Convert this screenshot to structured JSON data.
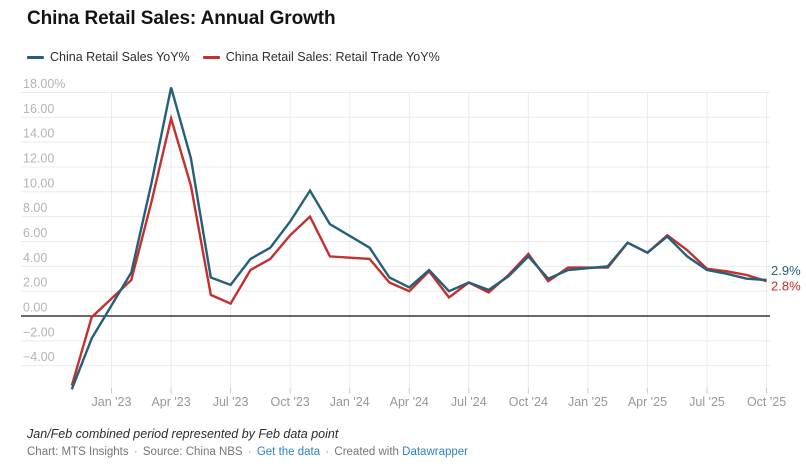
{
  "header": {
    "title": "China Retail Sales: Annual Growth"
  },
  "legend": {
    "items": [
      {
        "label": "China Retail Sales YoY%",
        "color": "#265f78"
      },
      {
        "label": "China Retail Sales: Retail Trade YoY%",
        "color": "#c4302d"
      }
    ]
  },
  "chart_data": {
    "type": "line",
    "title": "China Retail Sales: Annual Growth",
    "xlabel": "",
    "ylabel": "YoY % growth",
    "ylim": [
      -6.2,
      18.6
    ],
    "grid": true,
    "zero_line": true,
    "legend_position": "top-left",
    "x": [
      "Nov '22",
      "Dec '22",
      "Feb '23",
      "Mar '23",
      "Apr '23",
      "May '23",
      "Jun '23",
      "Jul '23",
      "Aug '23",
      "Sep '23",
      "Oct '23",
      "Nov '23",
      "Dec '23",
      "Feb '24",
      "Mar '24",
      "Apr '24",
      "May '24",
      "Jun '24",
      "Jul '24",
      "Aug '24",
      "Sep '24",
      "Oct '24",
      "Nov '24",
      "Dec '24",
      "Feb '25",
      "Mar '25",
      "Apr '25",
      "May '25",
      "Jun '25",
      "Jul '25",
      "Aug '25",
      "Sep '25",
      "Oct '25"
    ],
    "month_offsets": [
      -2,
      -1,
      1,
      2,
      3,
      4,
      5,
      6,
      7,
      8,
      9,
      10,
      11,
      13,
      14,
      15,
      16,
      17,
      18,
      19,
      20,
      21,
      22,
      23,
      25,
      26,
      27,
      28,
      29,
      30,
      31,
      32,
      33
    ],
    "series": [
      {
        "name": "China Retail Sales YoY%",
        "color": "#265f78",
        "end_label": "2.9%",
        "values": [
          -5.9,
          -1.8,
          3.5,
          10.6,
          18.4,
          12.7,
          3.1,
          2.5,
          4.6,
          5.5,
          7.6,
          10.1,
          7.4,
          5.5,
          3.1,
          2.3,
          3.7,
          2.0,
          2.7,
          2.1,
          3.2,
          4.8,
          3.0,
          3.7,
          4.0,
          5.9,
          5.1,
          6.4,
          4.8,
          3.7,
          3.4,
          3.0,
          2.9
        ]
      },
      {
        "name": "China Retail Sales: Retail Trade YoY%",
        "color": "#c4302d",
        "end_label": "2.8%",
        "values": [
          -5.6,
          -0.1,
          2.9,
          9.1,
          15.9,
          10.5,
          1.7,
          1.0,
          3.7,
          4.6,
          6.5,
          8.0,
          4.8,
          4.6,
          2.7,
          2.0,
          3.6,
          1.5,
          2.7,
          1.9,
          3.3,
          5.0,
          2.8,
          3.9,
          3.9,
          5.9,
          5.1,
          6.5,
          5.3,
          3.8,
          3.6,
          3.3,
          2.8
        ]
      }
    ],
    "y_ticks": [
      {
        "value": 18,
        "label": "18.00%"
      },
      {
        "value": 16,
        "label": "16.00"
      },
      {
        "value": 14,
        "label": "14.00"
      },
      {
        "value": 12,
        "label": "12.00"
      },
      {
        "value": 10,
        "label": "10.00"
      },
      {
        "value": 8,
        "label": "8.00"
      },
      {
        "value": 6,
        "label": "6.00"
      },
      {
        "value": 4,
        "label": "4.00"
      },
      {
        "value": 2,
        "label": "2.00"
      },
      {
        "value": 0,
        "label": "0.00"
      },
      {
        "value": -2,
        "label": "−2.00"
      },
      {
        "value": -4,
        "label": "−4.00"
      }
    ],
    "x_ticks": [
      {
        "label": "Jan '23",
        "month": 0
      },
      {
        "label": "Apr '23",
        "month": 3
      },
      {
        "label": "Jul '23",
        "month": 6
      },
      {
        "label": "Oct '23",
        "month": 9
      },
      {
        "label": "Jan '24",
        "month": 12
      },
      {
        "label": "Apr '24",
        "month": 15
      },
      {
        "label": "Jul '24",
        "month": 18
      },
      {
        "label": "Oct '24",
        "month": 21
      },
      {
        "label": "Jan '25",
        "month": 24
      },
      {
        "label": "Apr '25",
        "month": 27
      },
      {
        "label": "Jul '25",
        "month": 30
      },
      {
        "label": "Oct '25",
        "month": 33
      }
    ]
  },
  "footer": {
    "note": "Jan/Feb combined period represented by Feb data point",
    "credit": "Chart: MTS Insights",
    "separator": "·",
    "source": "Source: China NBS",
    "data_link": "Get the data",
    "created_prefix": "Created with",
    "created_link": "Datawrapper",
    "link_color": "#2d83c5"
  }
}
